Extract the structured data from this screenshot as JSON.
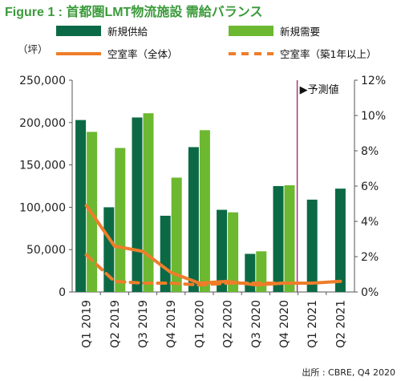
{
  "figure_title": "Figure 1 : 首都圏LMT物流施設 需給バランス",
  "source": "出所 : CBRE, Q4 2020",
  "chart_data": {
    "type": "bar",
    "categories": [
      "Q1 2019",
      "Q2 2019",
      "Q3 2019",
      "Q4 2019",
      "Q1 2020",
      "Q2 2020",
      "Q3 2020",
      "Q4 2020",
      "Q1 2021",
      "Q2 2021"
    ],
    "series": [
      {
        "name": "新規供給",
        "kind": "bar",
        "axis": "left",
        "color": "#0b6a45",
        "values": [
          203000,
          100000,
          206000,
          90000,
          171000,
          97000,
          45000,
          125000,
          109000,
          122000
        ]
      },
      {
        "name": "新規需要",
        "kind": "bar",
        "axis": "left",
        "color": "#6cb830",
        "values": [
          189000,
          170000,
          211000,
          135000,
          191000,
          94000,
          48000,
          126000,
          null,
          null
        ]
      },
      {
        "name": "空室率（全体）",
        "kind": "line",
        "axis": "right",
        "color": "#ee7d2a",
        "dash": "solid",
        "values": [
          4.9,
          2.6,
          2.3,
          1.1,
          0.5,
          0.6,
          0.4,
          0.5,
          0.5,
          0.6
        ]
      },
      {
        "name": "空室率（築1年以上）",
        "kind": "line",
        "axis": "right",
        "color": "#ee7d2a",
        "dash": "dashed",
        "values": [
          2.1,
          0.6,
          0.5,
          0.5,
          0.4,
          0.5,
          0.5,
          0.5,
          null,
          null
        ]
      }
    ],
    "ylabel_left": "（坪）",
    "ylim_left": [
      0,
      250000
    ],
    "yticks_left": [
      "0",
      "50,000",
      "100,000",
      "150,000",
      "200,000",
      "250,000"
    ],
    "ylim_right": [
      0,
      12
    ],
    "yticks_right": [
      "0%",
      "2%",
      "4%",
      "6%",
      "8%",
      "10%",
      "12%"
    ],
    "forecast_label": "▶予測値",
    "forecast_color": "#a8357f",
    "legend_position": "top",
    "grid": false
  }
}
